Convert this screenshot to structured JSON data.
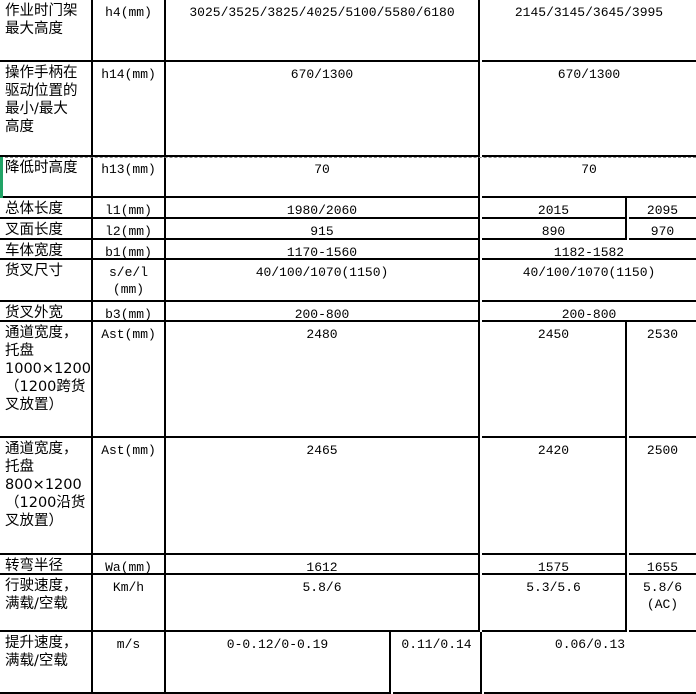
{
  "rows": [
    {
      "label": "作业时门架\n最大高度",
      "unit": "h4(mm)",
      "values": [
        "3025/3525/3825/4025/5100/5580/6180",
        "2145/3145/3645/3995"
      ]
    },
    {
      "label": "操作手柄在\n驱动位置的\n最小/最大\n高度",
      "unit": "h14(mm)",
      "values": [
        "670/1300",
        "670/1300"
      ]
    },
    {
      "label": "降低时高度",
      "unit": "h13(mm)",
      "values": [
        "70",
        "70"
      ]
    },
    {
      "label": "总体长度",
      "unit": "l1(mm)",
      "values": [
        "1980/2060",
        "2015",
        "2095"
      ]
    },
    {
      "label": "叉面长度",
      "unit": "l2(mm)",
      "values": [
        "915",
        "890",
        "970"
      ]
    },
    {
      "label": "车体宽度",
      "unit": "b1(mm)",
      "values": [
        "1170-1560",
        "1182-1582"
      ]
    },
    {
      "label": "货叉尺寸",
      "unit": "s/e/l\n(mm)",
      "values": [
        "40/100/1070(1150)",
        "40/100/1070(1150)"
      ]
    },
    {
      "label": "货叉外宽",
      "unit": "b3(mm)",
      "values": [
        "200-800",
        "200-800"
      ]
    },
    {
      "label": "通道宽度，\n托盘\n1000×1200\n（1200跨货\n叉放置）",
      "unit": "Ast(mm)",
      "values": [
        "2480",
        "2450",
        "2530"
      ]
    },
    {
      "label": "通道宽度，\n托盘\n800×1200\n（1200沿货\n叉放置）",
      "unit": "Ast(mm)",
      "values": [
        "2465",
        "2420",
        "2500"
      ]
    },
    {
      "label": "转弯半径",
      "unit": "Wa(mm)",
      "values": [
        "1612",
        "1575",
        "1655"
      ]
    },
    {
      "label": "行驶速度，\n满载/空载",
      "unit": "Km/h",
      "values": [
        "5.8/6",
        "5.3/5.6",
        "5.8/6\n(AC)"
      ]
    },
    {
      "label": "提升速度，\n满载/空载",
      "unit": "m/s",
      "values": [
        "0-0.12/0-0.19",
        "0.11/0.14",
        "0.06/0.13"
      ]
    }
  ],
  "colors": {
    "grid": "#000000",
    "selection": "#21a366"
  }
}
